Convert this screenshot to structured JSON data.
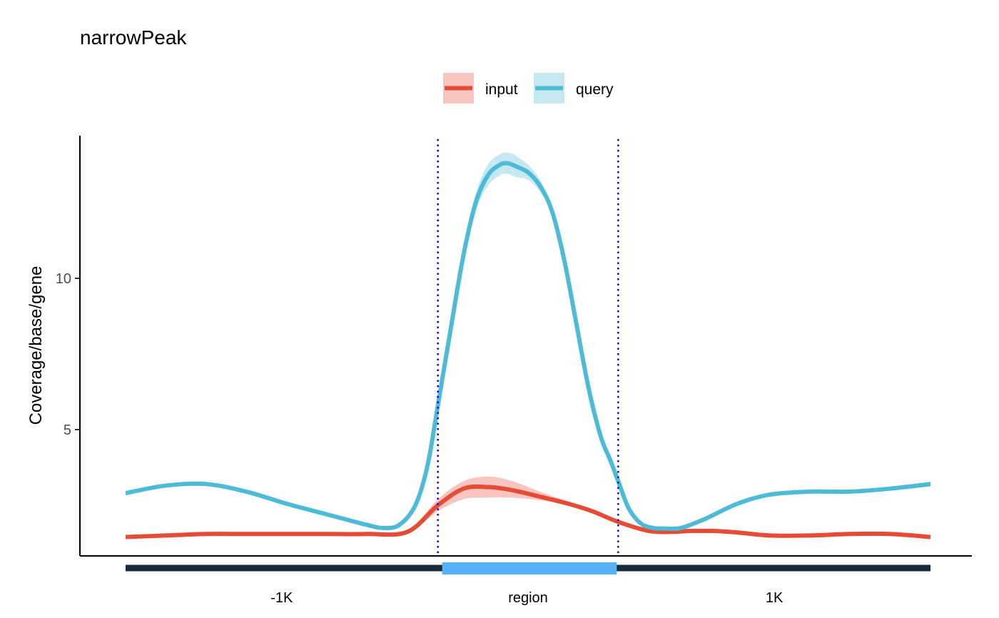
{
  "chart_data": {
    "type": "line",
    "title": "narrowPeak",
    "xlabel": "",
    "ylabel": "Coverage/base/gene",
    "xlim": [
      0,
      100
    ],
    "ylim": [
      0.8,
      14.6
    ],
    "yticks": [
      5,
      10
    ],
    "x_tick_labels": [
      "-1K",
      "region",
      "1K"
    ],
    "region_bounds": [
      38.8,
      61.2
    ],
    "grid": false,
    "legend_position": "top",
    "series": [
      {
        "name": "input",
        "color": "#E64B35",
        "band_color": "#F8C6C0",
        "x": [
          0,
          5,
          10,
          15,
          20,
          25,
          30,
          35,
          38.8,
          42,
          45,
          48,
          52,
          55,
          58,
          61.2,
          65,
          68,
          70,
          73,
          76,
          80,
          85,
          90,
          95,
          100
        ],
        "y": [
          1.45,
          1.5,
          1.55,
          1.55,
          1.55,
          1.55,
          1.55,
          1.62,
          2.5,
          3.05,
          3.1,
          3.0,
          2.75,
          2.55,
          2.3,
          1.95,
          1.65,
          1.62,
          1.65,
          1.65,
          1.6,
          1.5,
          1.5,
          1.55,
          1.55,
          1.45
        ],
        "y_lower": [
          1.42,
          1.47,
          1.52,
          1.52,
          1.52,
          1.52,
          1.52,
          1.58,
          2.3,
          2.7,
          2.75,
          2.75,
          2.65,
          2.5,
          2.27,
          1.92,
          1.62,
          1.59,
          1.62,
          1.62,
          1.57,
          1.47,
          1.47,
          1.52,
          1.52,
          1.42
        ],
        "y_upper": [
          1.48,
          1.53,
          1.58,
          1.58,
          1.58,
          1.58,
          1.58,
          1.66,
          2.7,
          3.3,
          3.45,
          3.3,
          2.9,
          2.62,
          2.33,
          1.98,
          1.68,
          1.65,
          1.68,
          1.68,
          1.63,
          1.53,
          1.53,
          1.58,
          1.58,
          1.48
        ]
      },
      {
        "name": "query",
        "color": "#4DBBD5",
        "band_color": "#C6E9F1",
        "x": [
          0,
          5,
          10,
          15,
          20,
          25,
          30,
          32,
          34,
          36,
          37.5,
          38.8,
          40.5,
          42,
          43.5,
          45,
          46.5,
          47.5,
          48.5,
          50,
          51.5,
          53,
          54.5,
          56,
          57.5,
          59,
          60.2,
          61.2,
          62.5,
          64,
          65.5,
          67,
          69,
          72,
          76,
          80,
          85,
          90,
          95,
          100
        ],
        "y": [
          2.9,
          3.15,
          3.2,
          2.95,
          2.55,
          2.2,
          1.85,
          1.75,
          1.85,
          2.5,
          3.8,
          5.8,
          8.5,
          10.8,
          12.5,
          13.4,
          13.75,
          13.8,
          13.7,
          13.5,
          13.05,
          12.2,
          10.6,
          8.5,
          6.4,
          4.8,
          4.0,
          3.3,
          2.4,
          1.9,
          1.75,
          1.73,
          1.75,
          2.05,
          2.55,
          2.85,
          2.95,
          2.95,
          3.05,
          3.2
        ],
        "y_lower": [
          2.85,
          3.1,
          3.15,
          2.9,
          2.5,
          2.15,
          1.8,
          1.7,
          1.8,
          2.45,
          3.75,
          5.7,
          8.4,
          10.6,
          12.2,
          13.05,
          13.4,
          13.45,
          13.35,
          13.25,
          12.85,
          12.1,
          10.55,
          8.45,
          6.35,
          4.75,
          3.95,
          3.25,
          2.35,
          1.85,
          1.7,
          1.68,
          1.7,
          2.0,
          2.5,
          2.8,
          2.9,
          2.9,
          3.0,
          3.12
        ],
        "y_upper": [
          2.95,
          3.2,
          3.25,
          3.0,
          2.6,
          2.25,
          1.9,
          1.8,
          1.9,
          2.55,
          3.85,
          5.9,
          8.6,
          11.0,
          12.8,
          13.75,
          14.1,
          14.15,
          14.05,
          13.75,
          13.25,
          12.3,
          10.65,
          8.55,
          6.45,
          4.85,
          4.05,
          3.35,
          2.45,
          1.95,
          1.8,
          1.78,
          1.8,
          2.1,
          2.6,
          2.9,
          3.0,
          3.0,
          3.1,
          3.28
        ]
      }
    ]
  },
  "colors": {
    "flank_bar": "#17293D",
    "region_bar": "#56B1F7",
    "boundary_line": "#0000FF"
  }
}
